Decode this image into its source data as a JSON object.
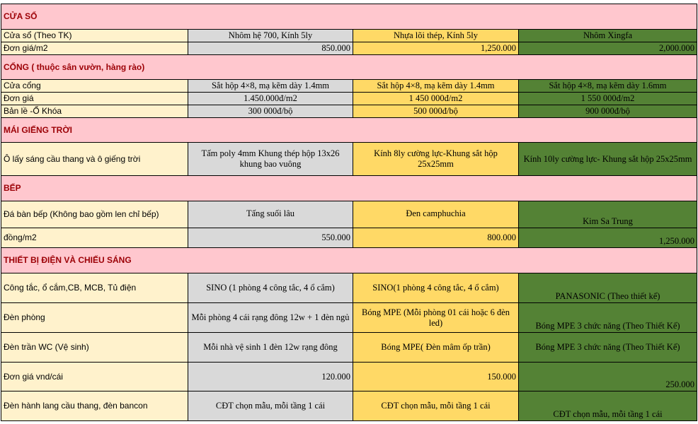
{
  "colors": {
    "section_bg": "#FFC7CE",
    "section_text": "#9C0006",
    "label_bg": "#FFF2CC",
    "option1_bg": "#D9D9D9",
    "option2_bg": "#FFD966",
    "option3_bg": "#548235"
  },
  "rows": [
    {
      "type": "section",
      "title": "CỬA SỔ"
    },
    {
      "type": "row",
      "label": "Cửa sổ (Theo TK)",
      "values": [
        "Nhôm hệ 700, Kính 5ly",
        "Nhựa lõi thép, Kính 5ly",
        "Nhôm Xingfa"
      ]
    },
    {
      "type": "row",
      "label": "Đơn giá/m2",
      "values": [
        "850.000",
        "1,250.000",
        "2,000.000"
      ],
      "numeric": true
    },
    {
      "type": "section",
      "title": "CỔNG ( thuộc sân vườn, hàng rào)"
    },
    {
      "type": "row",
      "label": "Cửa cổng",
      "values": [
        "Sắt hộp 4×8, mạ kẽm dày 1.4mm",
        "Sắt hộp 4×8, mạ kẽm dày 1.4mm",
        "Sắt hộp 4×8, mạ kẽm dày 1.6mm"
      ]
    },
    {
      "type": "row",
      "label": "Đơn giá",
      "values": [
        "1.450.000đ/m2",
        "1 450 000đ/m2",
        "1 550 000đ/m2"
      ]
    },
    {
      "type": "row",
      "label": "Bản lề -Ổ Khóa",
      "values": [
        "300 000đ/bộ",
        "500 000đ/bộ",
        "900 000đ/bộ"
      ]
    },
    {
      "type": "section",
      "title": "MÁI GIẾNG TRỜI"
    },
    {
      "type": "row",
      "label": "Ô lấy sáng cầu thang và ô giếng trời",
      "values": [
        "Tấm poly 4mm Khung thép hộp 13x26 khung bao vuông",
        "Kính 8ly cường lực-Khung sắt hộp 25x25mm",
        "Kính 10ly cường lực- Khung sắt hộp 25x25mm"
      ]
    },
    {
      "type": "section",
      "title": "BẾP"
    },
    {
      "type": "row",
      "label": "Đá bàn bếp (Không bao gồm len chỉ bếp)",
      "values": [
        "Tấng suối lâu",
        "Đen camphuchia",
        "Kim Sa Trung"
      ],
      "valign": "topish"
    },
    {
      "type": "row",
      "label": "đồng/m2",
      "values": [
        "550.000",
        "800.000",
        "1,250.000"
      ],
      "numeric": true
    },
    {
      "type": "section",
      "title": "THIẾT BỊ ĐIỆN VÀ CHIẾU SÁNG"
    },
    {
      "type": "row",
      "label": "Công tắc, ổ cắm,CB, MCB, Tủ điện",
      "values": [
        "SINO (1 phòng 4 công tắc, 4 ổ cắm)",
        "SINO(1 phòng 4 công tắc, 4 ổ cắm)",
        "PANASONIC (Theo thiết kế)"
      ]
    },
    {
      "type": "row",
      "label": "Đèn phòng",
      "values": [
        "Mỗi phòng 4 cái rạng đông  12w + 1 đèn ngủ",
        "Bóng MPE (Mỗi phòng 01 cái hoặc 6 đèn led)",
        "Bóng MPE 3 chức năng  (Theo Thiết Kế)"
      ]
    },
    {
      "type": "row",
      "label": "Đèn trần WC (Vệ sinh)",
      "values": [
        "Mỗi nhà vệ sinh 1 đèn 12w rạng đông",
        "Bóng MPE( Đèn mâm ốp trần)",
        "Bóng MPE 3 chức năng  (Theo Thiết Kế)"
      ]
    },
    {
      "type": "row",
      "label": "Đơn giá vnd/cái",
      "values": [
        "120.000",
        "150.000",
        "250.000"
      ],
      "numeric": true
    },
    {
      "type": "row",
      "label": "Đèn hành lang cầu thang, đèn bancon",
      "values": [
        "CĐT chọn mẫu, mỗi tầng 1 cái",
        "CĐT chọn mẫu, mỗi tầng 1 cái",
        "CĐT chọn mẫu, mỗi tầng 1 cái"
      ]
    }
  ]
}
